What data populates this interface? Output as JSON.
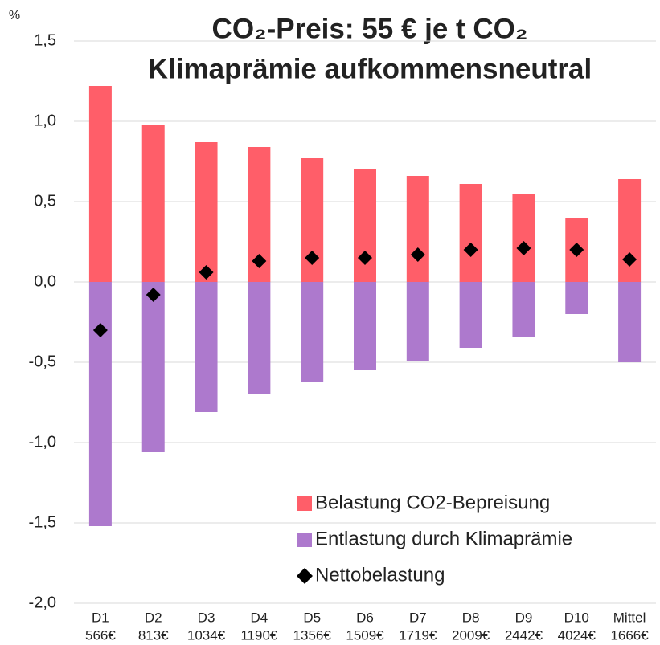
{
  "chart_data": {
    "type": "bar",
    "title": [
      "CO₂-Preis: 55 € je t CO₂",
      "Klimaprämie aufkommensneutral"
    ],
    "y_unit": "%",
    "categories": [
      "D1",
      "D2",
      "D3",
      "D4",
      "D5",
      "D6",
      "D7",
      "D8",
      "D9",
      "D10",
      "Mittel"
    ],
    "category_incomes": [
      "566€",
      "813€",
      "1034€",
      "1190€",
      "1356€",
      "1509€",
      "1719€",
      "2009€",
      "2442€",
      "4024€",
      "1666€"
    ],
    "series": [
      {
        "name": "Belastung CO2-Bepreisung",
        "color": "#ff5e69",
        "mark": "bar",
        "values": [
          1.22,
          0.98,
          0.87,
          0.84,
          0.77,
          0.7,
          0.66,
          0.61,
          0.55,
          0.4,
          0.64
        ]
      },
      {
        "name": "Entlastung durch Klimaprämie",
        "color": "#ad79cd",
        "mark": "bar",
        "values": [
          -1.52,
          -1.06,
          -0.81,
          -0.7,
          -0.62,
          -0.55,
          -0.49,
          -0.41,
          -0.34,
          -0.2,
          -0.5
        ]
      },
      {
        "name": "Nettobelastung",
        "color": "#000000",
        "mark": "diamond",
        "values": [
          -0.3,
          -0.08,
          0.06,
          0.13,
          0.15,
          0.15,
          0.17,
          0.2,
          0.21,
          0.2,
          0.14
        ]
      }
    ],
    "ylim": [
      -2.0,
      1.5
    ],
    "yticks": [
      {
        "value": -2.0,
        "label": "-2,0"
      },
      {
        "value": -1.5,
        "label": "-1,5"
      },
      {
        "value": -1.0,
        "label": "-1,0"
      },
      {
        "value": -0.5,
        "label": "-0,5"
      },
      {
        "value": 0.0,
        "label": "0,0"
      },
      {
        "value": 0.5,
        "label": "0,5"
      },
      {
        "value": 1.0,
        "label": "1,0"
      },
      {
        "value": 1.5,
        "label": "1,5"
      }
    ],
    "grid": true
  }
}
